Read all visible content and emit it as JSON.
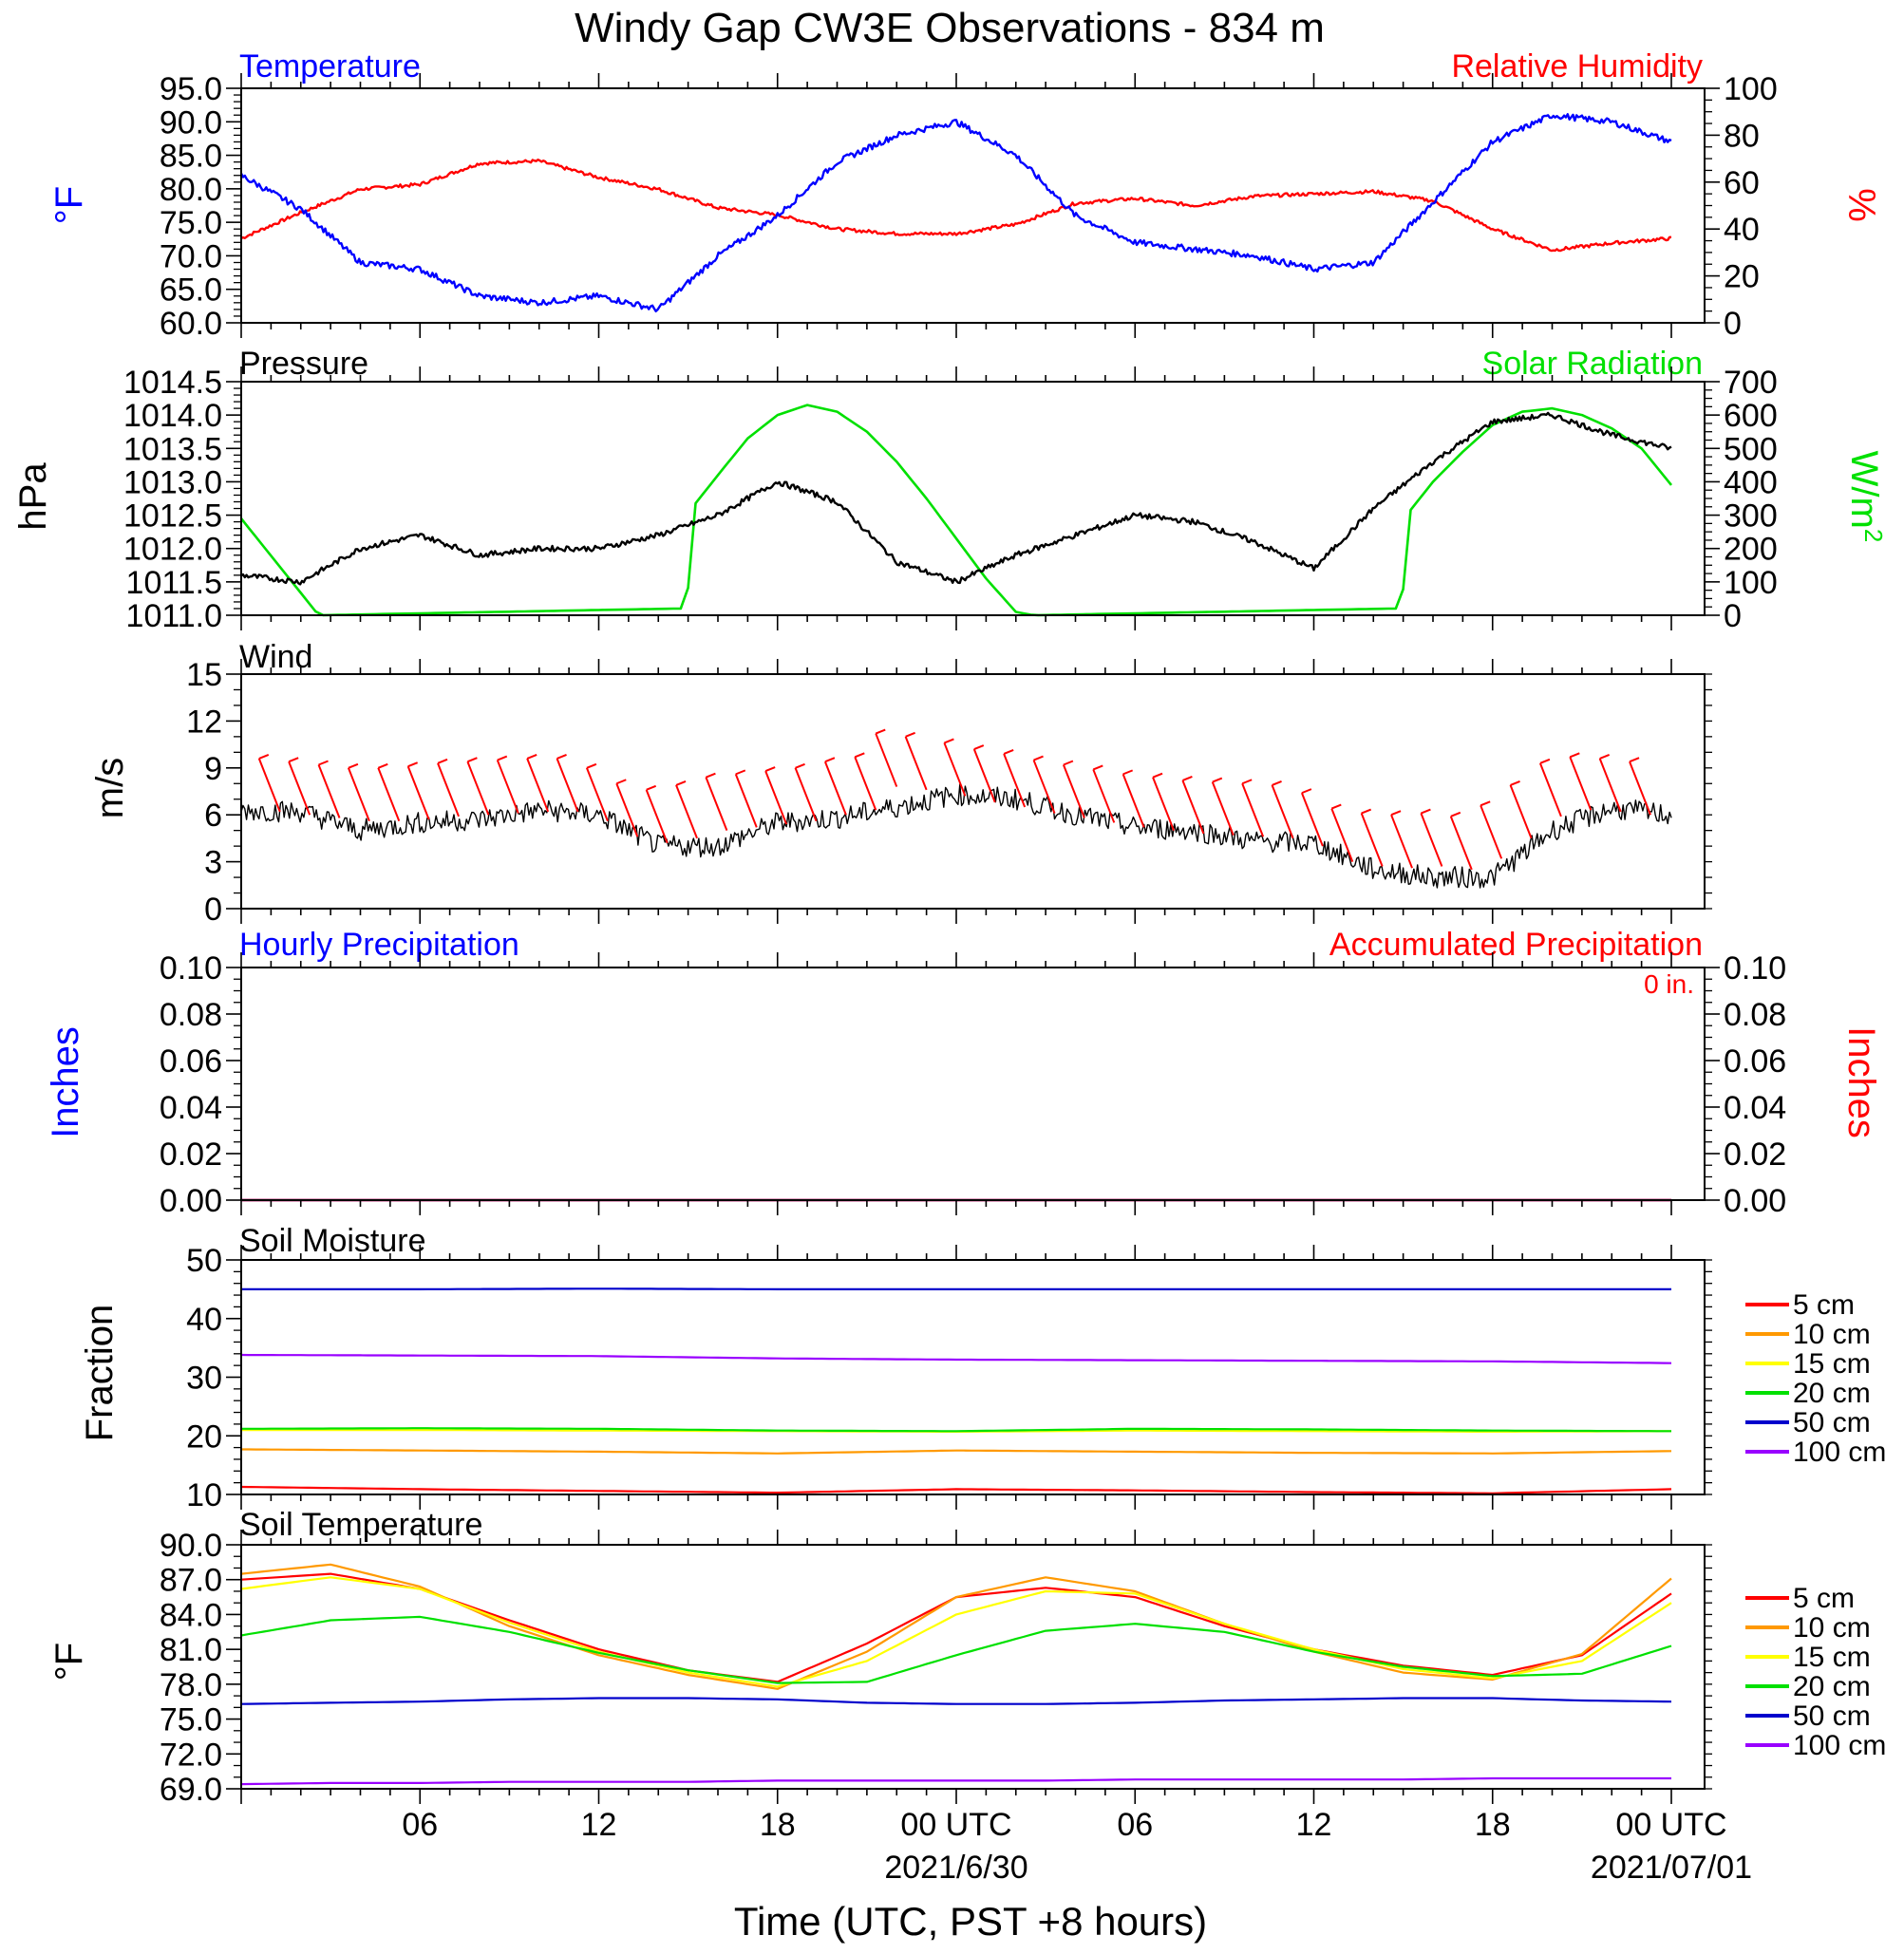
{
  "title": "Windy Gap CW3E Observations - 834 m",
  "xlabel": "Time (UTC, PST +8 hours)",
  "x_ticks": [
    {
      "hour": 6,
      "label": "06",
      "sub": ""
    },
    {
      "hour": 12,
      "label": "12",
      "sub": ""
    },
    {
      "hour": 18,
      "label": "18",
      "sub": ""
    },
    {
      "hour": 24,
      "label": "00 UTC",
      "sub": "2021/6/30"
    },
    {
      "hour": 30,
      "label": "06",
      "sub": ""
    },
    {
      "hour": 36,
      "label": "12",
      "sub": ""
    },
    {
      "hour": 42,
      "label": "18",
      "sub": ""
    },
    {
      "hour": 48,
      "label": "00 UTC",
      "sub": "2021/07/01"
    }
  ],
  "colors": {
    "blue": "#0000ff",
    "red": "#ff0000",
    "green": "#00e000",
    "black": "#000000",
    "orange": "#ff9900",
    "yellow": "#ffff00",
    "navy": "#0000cc",
    "purple": "#9900ff"
  },
  "panels": {
    "temp": {
      "left_title": "Temperature",
      "right_title": "Relative Humidity",
      "left_unit": "oF",
      "right_unit": "%",
      "left_ticks": [
        "95.0",
        "90.0",
        "85.0",
        "80.0",
        "75.0",
        "70.0",
        "65.0",
        "60.0"
      ],
      "right_ticks": [
        "100",
        "80",
        "60",
        "40",
        "20",
        "0"
      ]
    },
    "pressure": {
      "left_title": "Pressure",
      "right_title": "Solar Radiation",
      "left_unit": "hPa",
      "right_unit": "W/m2",
      "left_ticks": [
        "1014.5",
        "1014.0",
        "1013.5",
        "1013.0",
        "1012.5",
        "1012.0",
        "1011.5",
        "1011.0"
      ],
      "right_ticks": [
        "700",
        "600",
        "500",
        "400",
        "300",
        "200",
        "100",
        "0"
      ]
    },
    "wind": {
      "left_title": "Wind",
      "left_unit": "m/s",
      "left_ticks": [
        "15",
        "12",
        "9",
        "6",
        "3",
        "0"
      ]
    },
    "precip": {
      "left_title": "Hourly Precipitation",
      "right_title": "Accumulated Precipitation",
      "annotation": "0 in.",
      "left_unit": "Inches",
      "right_unit": "Inches",
      "left_ticks": [
        "0.10",
        "0.08",
        "0.06",
        "0.04",
        "0.02",
        "0.00"
      ],
      "right_ticks": [
        "0.10",
        "0.08",
        "0.06",
        "0.04",
        "0.02",
        "0.00"
      ]
    },
    "soilm": {
      "left_title": "Soil Moisture",
      "left_unit": "Fraction",
      "left_ticks": [
        "50",
        "40",
        "30",
        "20",
        "10"
      ]
    },
    "soilt": {
      "left_title": "Soil Temperature",
      "left_unit": "oF",
      "left_ticks": [
        "90.0",
        "87.0",
        "84.0",
        "81.0",
        "78.0",
        "75.0",
        "72.0",
        "69.0"
      ]
    }
  },
  "legend": [
    "5 cm",
    "10 cm",
    "15 cm",
    "20 cm",
    "50 cm",
    "100 cm"
  ],
  "chart_data": [
    {
      "type": "line",
      "title": "Temperature / Relative Humidity",
      "x_hours": [
        0,
        2,
        4,
        6,
        8,
        10,
        12,
        14,
        16,
        18,
        20,
        22,
        24,
        26,
        28,
        30,
        32,
        34,
        36,
        38,
        40,
        42,
        44,
        46,
        48
      ],
      "series": [
        {
          "name": "Temperature",
          "axis": "left",
          "color": "#0000ff",
          "ylim": [
            60,
            95
          ],
          "values": [
            82,
            77,
            69,
            68,
            64,
            63,
            64,
            62,
            70,
            76,
            84,
            88,
            90,
            85,
            76,
            72,
            71,
            70,
            68,
            69,
            78,
            87,
            91,
            90,
            87
          ]
        },
        {
          "name": "Relative Humidity",
          "axis": "right",
          "color": "#ff0000",
          "ylim": [
            0,
            100
          ],
          "values": [
            36,
            47,
            57,
            59,
            68,
            69,
            62,
            57,
            49,
            46,
            40,
            38,
            38,
            42,
            51,
            53,
            50,
            54,
            55,
            56,
            52,
            40,
            31,
            34,
            36
          ]
        }
      ]
    },
    {
      "type": "line",
      "title": "Pressure / Solar Radiation",
      "x_hours": [
        0,
        2,
        4,
        6,
        8,
        10,
        12,
        14,
        16,
        18,
        20,
        22,
        24,
        26,
        28,
        30,
        32,
        34,
        36,
        38,
        40,
        42,
        44,
        46,
        48
      ],
      "series": [
        {
          "name": "Pressure",
          "axis": "left",
          "color": "#000000",
          "ylim": [
            1011.0,
            1014.5
          ],
          "values": [
            1011.6,
            1011.5,
            1012.0,
            1012.2,
            1011.9,
            1012.0,
            1012.0,
            1012.2,
            1012.5,
            1013.0,
            1012.7,
            1011.8,
            1011.5,
            1011.9,
            1012.2,
            1012.5,
            1012.4,
            1012.1,
            1011.7,
            1012.6,
            1013.3,
            1013.9,
            1014.0,
            1013.7,
            1013.5
          ]
        },
        {
          "name": "Solar Radiation",
          "axis": "right",
          "color": "#00e000",
          "ylim": [
            0,
            700
          ],
          "x_hours": [
            0,
            2.6,
            14.6,
            14.95,
            15.2,
            16,
            17,
            18,
            19,
            20,
            21,
            22,
            23,
            24,
            25,
            26,
            26.6,
            38.6,
            38.95,
            39.2,
            40,
            41,
            42,
            43,
            44,
            45,
            46,
            47,
            48
          ],
          "values": [
            290,
            0,
            20,
            20,
            330,
            420,
            530,
            600,
            630,
            610,
            550,
            460,
            350,
            230,
            110,
            10,
            0,
            20,
            20,
            310,
            400,
            490,
            570,
            610,
            620,
            600,
            560,
            500,
            390
          ]
        }
      ]
    },
    {
      "type": "line",
      "title": "Wind",
      "x_hours": [
        0,
        2,
        4,
        6,
        8,
        10,
        12,
        14,
        16,
        18,
        20,
        22,
        24,
        26,
        28,
        30,
        32,
        34,
        36,
        38,
        40,
        42,
        44,
        46,
        48
      ],
      "series": [
        {
          "name": "Wind speed",
          "color": "#000000",
          "ylim": [
            0,
            15
          ],
          "values": [
            6.3,
            6.2,
            5.0,
            5.5,
            5.7,
            6.3,
            6.0,
            4.0,
            4.0,
            5.5,
            5.8,
            6.5,
            7.3,
            7.0,
            6.0,
            5.2,
            5.0,
            4.3,
            4.2,
            2.5,
            2.0,
            2.0,
            5.0,
            6.4,
            6.0
          ]
        }
      ],
      "barbs": [
        {
          "h": 1.3,
          "speed": 6.2
        },
        {
          "h": 2.3,
          "speed": 6.0
        },
        {
          "h": 3.3,
          "speed": 5.8
        },
        {
          "h": 4.3,
          "speed": 5.6
        },
        {
          "h": 5.3,
          "speed": 5.6
        },
        {
          "h": 6.3,
          "speed": 5.7
        },
        {
          "h": 7.3,
          "speed": 5.9
        },
        {
          "h": 8.3,
          "speed": 6.0
        },
        {
          "h": 9.3,
          "speed": 6.1
        },
        {
          "h": 10.3,
          "speed": 6.2
        },
        {
          "h": 11.3,
          "speed": 6.2
        },
        {
          "h": 12.3,
          "speed": 5.6
        },
        {
          "h": 13.3,
          "speed": 4.6
        },
        {
          "h": 14.3,
          "speed": 4.2
        },
        {
          "h": 15.3,
          "speed": 4.5
        },
        {
          "h": 16.3,
          "speed": 5.0
        },
        {
          "h": 17.3,
          "speed": 5.2
        },
        {
          "h": 18.3,
          "speed": 5.4
        },
        {
          "h": 19.3,
          "speed": 5.6
        },
        {
          "h": 20.3,
          "speed": 6.0
        },
        {
          "h": 21.3,
          "speed": 6.3
        },
        {
          "h": 22.0,
          "speed": 7.8
        },
        {
          "h": 23.0,
          "speed": 7.6
        },
        {
          "h": 24.3,
          "speed": 7.2
        },
        {
          "h": 25.3,
          "speed": 6.8
        },
        {
          "h": 26.3,
          "speed": 6.5
        },
        {
          "h": 27.3,
          "speed": 6.1
        },
        {
          "h": 28.3,
          "speed": 5.8
        },
        {
          "h": 29.3,
          "speed": 5.5
        },
        {
          "h": 30.3,
          "speed": 5.2
        },
        {
          "h": 31.3,
          "speed": 5.0
        },
        {
          "h": 32.3,
          "speed": 4.8
        },
        {
          "h": 33.3,
          "speed": 4.7
        },
        {
          "h": 34.3,
          "speed": 4.6
        },
        {
          "h": 35.3,
          "speed": 4.5
        },
        {
          "h": 36.3,
          "speed": 4.0
        },
        {
          "h": 37.3,
          "speed": 3.0
        },
        {
          "h": 38.3,
          "speed": 2.7
        },
        {
          "h": 39.3,
          "speed": 2.6
        },
        {
          "h": 40.3,
          "speed": 2.7
        },
        {
          "h": 41.3,
          "speed": 2.5
        },
        {
          "h": 42.3,
          "speed": 3.2
        },
        {
          "h": 43.3,
          "speed": 4.5
        },
        {
          "h": 44.3,
          "speed": 5.9
        },
        {
          "h": 45.3,
          "speed": 6.3
        },
        {
          "h": 46.3,
          "speed": 6.2
        },
        {
          "h": 47.3,
          "speed": 6.0
        }
      ]
    },
    {
      "type": "line",
      "title": "Hourly Precipitation / Accumulated Precipitation",
      "x_hours": [
        0,
        48
      ],
      "series": [
        {
          "name": "Hourly Precipitation",
          "axis": "left",
          "color": "#0000ff",
          "ylim": [
            0,
            0.1
          ],
          "values": [
            0,
            0
          ]
        },
        {
          "name": "Accumulated Precipitation",
          "axis": "right",
          "color": "#ff0000",
          "ylim": [
            0,
            0.1
          ],
          "values": [
            0,
            0
          ]
        }
      ]
    },
    {
      "type": "line",
      "title": "Soil Moisture",
      "x_hours": [
        0,
        6,
        12,
        18,
        24,
        30,
        36,
        42,
        48
      ],
      "ylim": [
        10,
        50
      ],
      "series": [
        {
          "name": "5 cm",
          "color": "#ff0000",
          "values": [
            11.3,
            10.9,
            10.6,
            10.3,
            10.9,
            10.7,
            10.4,
            10.2,
            10.9
          ]
        },
        {
          "name": "10 cm",
          "color": "#ff9900",
          "values": [
            17.7,
            17.5,
            17.3,
            17.0,
            17.5,
            17.3,
            17.1,
            17.0,
            17.4
          ]
        },
        {
          "name": "15 cm",
          "color": "#ffff00",
          "values": [
            21.0,
            21.0,
            20.9,
            20.8,
            20.7,
            20.9,
            20.8,
            20.7,
            20.8
          ]
        },
        {
          "name": "20 cm",
          "color": "#00e000",
          "values": [
            21.2,
            21.3,
            21.2,
            20.9,
            20.8,
            21.2,
            21.1,
            20.9,
            20.8
          ]
        },
        {
          "name": "50 cm",
          "color": "#0000cc",
          "values": [
            45.0,
            45.0,
            45.1,
            45.0,
            45.0,
            45.0,
            45.0,
            45.0,
            45.0
          ]
        },
        {
          "name": "100 cm",
          "color": "#9900ff",
          "values": [
            33.8,
            33.7,
            33.6,
            33.2,
            33.0,
            32.9,
            32.8,
            32.7,
            32.4
          ]
        }
      ]
    },
    {
      "type": "line",
      "title": "Soil Temperature",
      "x_hours": [
        0,
        3,
        6,
        9,
        12,
        15,
        18,
        21,
        24,
        27,
        30,
        33,
        36,
        39,
        42,
        45,
        48
      ],
      "ylim": [
        69,
        90
      ],
      "series": [
        {
          "name": "5 cm",
          "color": "#ff0000",
          "values": [
            87.0,
            87.5,
            86.2,
            83.5,
            81.0,
            79.2,
            78.2,
            81.5,
            85.5,
            86.3,
            85.5,
            83.0,
            81.0,
            79.6,
            78.8,
            80.5,
            85.8
          ]
        },
        {
          "name": "10 cm",
          "color": "#ff9900",
          "values": [
            87.5,
            88.3,
            86.4,
            83.0,
            80.5,
            78.8,
            77.6,
            80.8,
            85.5,
            87.2,
            86.0,
            83.2,
            80.8,
            79.0,
            78.4,
            80.6,
            87.1
          ]
        },
        {
          "name": "15 cm",
          "color": "#ffff00",
          "values": [
            86.2,
            87.2,
            86.2,
            83.3,
            80.8,
            79.0,
            77.8,
            80.0,
            84.0,
            86.0,
            85.8,
            83.2,
            81.0,
            79.3,
            78.5,
            80.0,
            85.0
          ]
        },
        {
          "name": "20 cm",
          "color": "#00e000",
          "values": [
            82.2,
            83.5,
            83.8,
            82.5,
            80.7,
            79.2,
            78.1,
            78.2,
            80.5,
            82.6,
            83.2,
            82.5,
            80.8,
            79.5,
            78.7,
            78.9,
            81.3
          ]
        },
        {
          "name": "50 cm",
          "color": "#0000cc",
          "values": [
            76.3,
            76.4,
            76.5,
            76.7,
            76.8,
            76.8,
            76.7,
            76.4,
            76.3,
            76.3,
            76.4,
            76.6,
            76.7,
            76.8,
            76.8,
            76.6,
            76.5
          ]
        },
        {
          "name": "100 cm",
          "color": "#9900ff",
          "values": [
            69.4,
            69.5,
            69.5,
            69.6,
            69.6,
            69.6,
            69.7,
            69.7,
            69.7,
            69.7,
            69.8,
            69.8,
            69.8,
            69.8,
            69.9,
            69.9,
            69.9
          ]
        }
      ]
    }
  ]
}
